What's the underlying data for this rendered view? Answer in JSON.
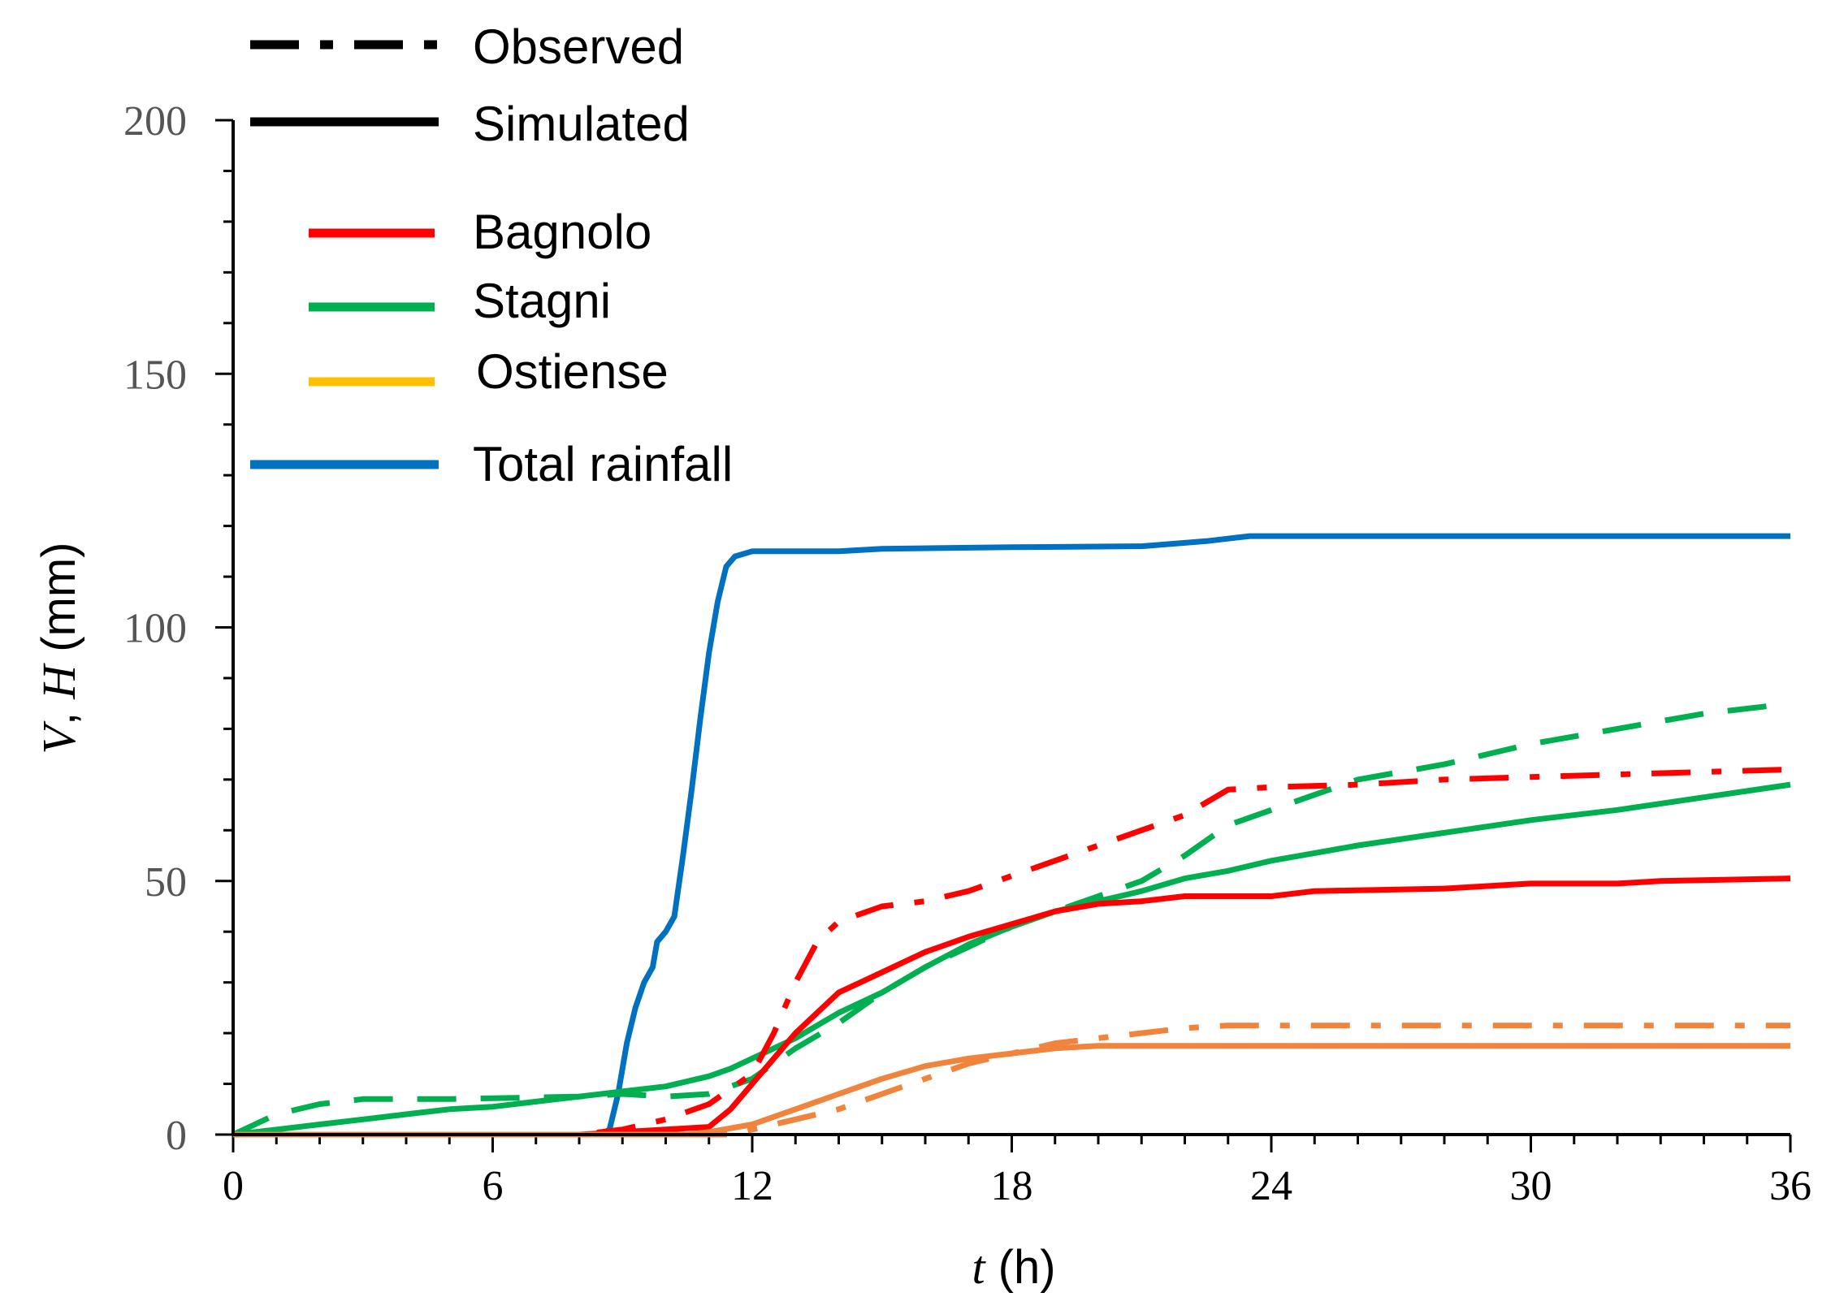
{
  "chart_data": {
    "type": "line",
    "title": "",
    "xlabel": {
      "italic": "t",
      "rest": " (h)"
    },
    "ylabel": {
      "v": "V",
      "sep": ", ",
      "h": "H",
      "rest": " (mm)"
    },
    "xlim": [
      0,
      36
    ],
    "ylim": [
      0,
      200
    ],
    "x_ticks": [
      0,
      6,
      12,
      18,
      24,
      30,
      36
    ],
    "y_ticks": [
      0,
      50,
      100,
      150,
      200
    ],
    "x_minor_step": 1,
    "y_minor_step": 10,
    "legend": {
      "style_entries": [
        {
          "label": "Observed",
          "dash": "dashdot"
        },
        {
          "label": "Simulated",
          "dash": "solid"
        }
      ],
      "color_entries": [
        {
          "label": "Bagnolo",
          "color": "#ff0000"
        },
        {
          "label": "Stagni",
          "color": "#00b050"
        },
        {
          "label": "Ostiense",
          "color": "#ffc000"
        },
        {
          "label": "Total rainfall",
          "color": "#0070c0"
        }
      ]
    },
    "series": [
      {
        "name": "Total rainfall",
        "kind": "simulated",
        "color": "#0070c0",
        "points": [
          [
            0,
            0
          ],
          [
            7,
            0
          ],
          [
            8.5,
            0
          ],
          [
            8.7,
            1
          ],
          [
            8.9,
            8
          ],
          [
            9.1,
            18
          ],
          [
            9.3,
            25
          ],
          [
            9.5,
            30
          ],
          [
            9.7,
            33
          ],
          [
            9.8,
            38
          ],
          [
            10.0,
            40
          ],
          [
            10.2,
            43
          ],
          [
            10.4,
            55
          ],
          [
            10.6,
            68
          ],
          [
            10.8,
            82
          ],
          [
            11.0,
            95
          ],
          [
            11.2,
            105
          ],
          [
            11.4,
            112
          ],
          [
            11.6,
            114
          ],
          [
            12.0,
            115
          ],
          [
            14.0,
            115
          ],
          [
            15.0,
            115.5
          ],
          [
            18.0,
            115.8
          ],
          [
            21.0,
            116
          ],
          [
            22.5,
            117
          ],
          [
            23.5,
            118
          ],
          [
            36,
            118
          ]
        ]
      },
      {
        "name": "Stagni",
        "kind": "observed",
        "color": "#00b050",
        "dash": "dashed",
        "points": [
          [
            0,
            0
          ],
          [
            1,
            4
          ],
          [
            2,
            6
          ],
          [
            3,
            7
          ],
          [
            5,
            7
          ],
          [
            8,
            7.5
          ],
          [
            9,
            8
          ],
          [
            10,
            7.5
          ],
          [
            11,
            8
          ],
          [
            12,
            11
          ],
          [
            13,
            17
          ],
          [
            14,
            22
          ],
          [
            15,
            28
          ],
          [
            16,
            33
          ],
          [
            17,
            37
          ],
          [
            18,
            41
          ],
          [
            19,
            44
          ],
          [
            20,
            47
          ],
          [
            21,
            50
          ],
          [
            22,
            55
          ],
          [
            23,
            61
          ],
          [
            24,
            64
          ],
          [
            25,
            67
          ],
          [
            26,
            70
          ],
          [
            28,
            73
          ],
          [
            30,
            77
          ],
          [
            32,
            80
          ],
          [
            34,
            83
          ],
          [
            36,
            85
          ]
        ]
      },
      {
        "name": "Stagni",
        "kind": "simulated",
        "color": "#00b050",
        "dash": "solid",
        "points": [
          [
            0,
            0
          ],
          [
            1,
            1
          ],
          [
            2,
            2
          ],
          [
            3,
            3
          ],
          [
            4,
            4
          ],
          [
            5,
            5
          ],
          [
            6,
            5.5
          ],
          [
            7,
            6.5
          ],
          [
            8,
            7.5
          ],
          [
            9,
            8.5
          ],
          [
            10,
            9.5
          ],
          [
            11,
            11.5
          ],
          [
            11.5,
            13
          ],
          [
            12,
            15
          ],
          [
            13,
            19
          ],
          [
            14,
            24
          ],
          [
            15,
            28
          ],
          [
            16,
            33
          ],
          [
            17,
            37.5
          ],
          [
            18,
            41
          ],
          [
            19,
            44
          ],
          [
            20,
            46
          ],
          [
            21,
            48
          ],
          [
            22,
            50.5
          ],
          [
            23,
            52
          ],
          [
            24,
            54
          ],
          [
            25,
            55.5
          ],
          [
            26,
            57
          ],
          [
            28,
            59.5
          ],
          [
            30,
            62
          ],
          [
            32,
            64
          ],
          [
            34,
            66.5
          ],
          [
            36,
            69
          ]
        ]
      },
      {
        "name": "Bagnolo",
        "kind": "observed",
        "color": "#ff0000",
        "dash": "dashdot",
        "points": [
          [
            0,
            0
          ],
          [
            8,
            0
          ],
          [
            9,
            1
          ],
          [
            10,
            3
          ],
          [
            11,
            6
          ],
          [
            12,
            12
          ],
          [
            12.5,
            20
          ],
          [
            13,
            30
          ],
          [
            13.5,
            38
          ],
          [
            14,
            42
          ],
          [
            15,
            45
          ],
          [
            16,
            46
          ],
          [
            17,
            48
          ],
          [
            18,
            51
          ],
          [
            19,
            54
          ],
          [
            20,
            57
          ],
          [
            21,
            60
          ],
          [
            22,
            63
          ],
          [
            23,
            68
          ],
          [
            24,
            68.5
          ],
          [
            26,
            69
          ],
          [
            28,
            70
          ],
          [
            30,
            70.5
          ],
          [
            32,
            71
          ],
          [
            34,
            71.5
          ],
          [
            36,
            72
          ]
        ]
      },
      {
        "name": "Bagnolo",
        "kind": "simulated",
        "color": "#ff0000",
        "dash": "solid",
        "points": [
          [
            0,
            0
          ],
          [
            8,
            0
          ],
          [
            9,
            0.5
          ],
          [
            10,
            1
          ],
          [
            11,
            1.5
          ],
          [
            11.5,
            5
          ],
          [
            12,
            10
          ],
          [
            12.5,
            15
          ],
          [
            13,
            20
          ],
          [
            13.5,
            24
          ],
          [
            14,
            28
          ],
          [
            14.5,
            30
          ],
          [
            15,
            32
          ],
          [
            15.5,
            34
          ],
          [
            16,
            36
          ],
          [
            17,
            39
          ],
          [
            18,
            41.5
          ],
          [
            19,
            44
          ],
          [
            20,
            45.5
          ],
          [
            21,
            46
          ],
          [
            22,
            47
          ],
          [
            24,
            47
          ],
          [
            25,
            48
          ],
          [
            28,
            48.5
          ],
          [
            30,
            49.5
          ],
          [
            32,
            49.5
          ],
          [
            33,
            50
          ],
          [
            36,
            50.5
          ]
        ]
      },
      {
        "name": "Ostiense",
        "kind": "observed",
        "color": "#f0843c",
        "dash": "dashdot",
        "points": [
          [
            0,
            0
          ],
          [
            11.5,
            0
          ],
          [
            12,
            1
          ],
          [
            13,
            3
          ],
          [
            14,
            5
          ],
          [
            15,
            8
          ],
          [
            16,
            11
          ],
          [
            17,
            14
          ],
          [
            18,
            16
          ],
          [
            19,
            18
          ],
          [
            20,
            19
          ],
          [
            21,
            20
          ],
          [
            22,
            21
          ],
          [
            23,
            21.5
          ],
          [
            24,
            21.5
          ],
          [
            36,
            21.5
          ]
        ]
      },
      {
        "name": "Ostiense",
        "kind": "simulated",
        "color": "#f0843c",
        "dash": "solid",
        "points": [
          [
            0,
            0
          ],
          [
            10.5,
            0
          ],
          [
            11,
            0.5
          ],
          [
            12,
            2
          ],
          [
            13,
            5
          ],
          [
            14,
            8
          ],
          [
            15,
            11
          ],
          [
            16,
            13.5
          ],
          [
            17,
            15
          ],
          [
            18,
            16
          ],
          [
            19,
            17
          ],
          [
            20,
            17.5
          ],
          [
            24,
            17.5
          ],
          [
            36,
            17.5
          ]
        ]
      }
    ]
  }
}
